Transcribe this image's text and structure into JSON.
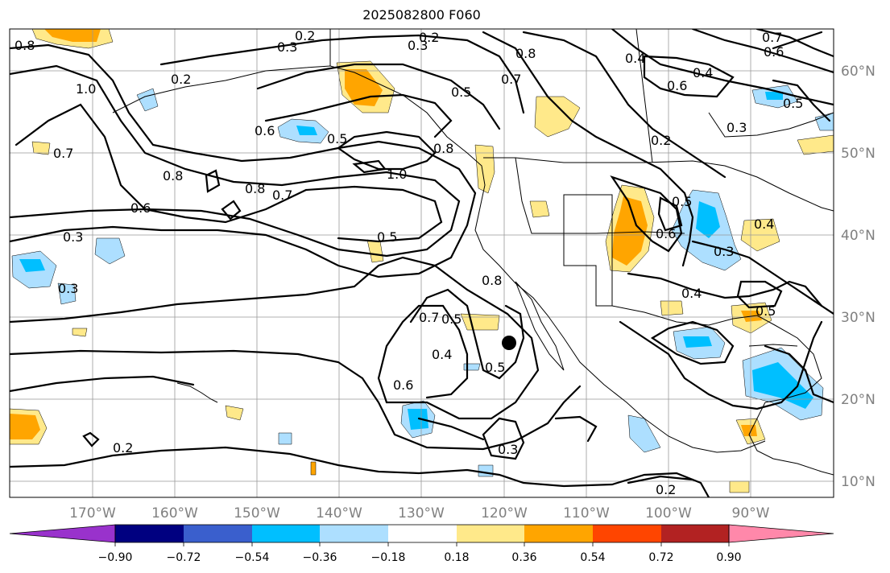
{
  "title": "2025082800 F060",
  "map": {
    "lon_labels": [
      "170°W",
      "160°W",
      "150°W",
      "140°W",
      "130°W",
      "120°W",
      "110°W",
      "100°W",
      "90°W"
    ],
    "lat_labels": [
      "60°N",
      "50°N",
      "40°N",
      "30°N",
      "20°N",
      "10°N"
    ],
    "contour_labels": [
      "0.8",
      "0.3",
      "0.2",
      "0.2",
      "0.3",
      "0.7",
      "0.6",
      "0.4",
      "1.0",
      "0.2",
      "0.8",
      "0.4",
      "0.6",
      "0.5",
      "0.7",
      "0.7",
      "0.5",
      "0.8",
      "0.6",
      "0.8",
      "0.2",
      "0.3",
      "0.6",
      "0.5",
      "1.0",
      "0.7",
      "0.8",
      "0.8",
      "0.3",
      "0.5",
      "0.6",
      "0.4",
      "0.3",
      "0.4",
      "0.5",
      "0.7",
      "0.5",
      "0.4",
      "0.5",
      "0.6",
      "0.2",
      "0.2",
      "0.3",
      "0.3",
      "0.5"
    ],
    "marker": "black-dot"
  },
  "colorbar": {
    "ticks": [
      "−0.90",
      "−0.72",
      "−0.54",
      "−0.36",
      "−0.18",
      "0.18",
      "0.36",
      "0.54",
      "0.72",
      "0.90"
    ],
    "colors": [
      "#9932cc",
      "#000080",
      "#3a5fcd",
      "#00bfff",
      "#addfff",
      "#ffffff",
      "#ffe98a",
      "#ffa500",
      "#ff4500",
      "#b22222",
      "#ff88aa"
    ]
  }
}
